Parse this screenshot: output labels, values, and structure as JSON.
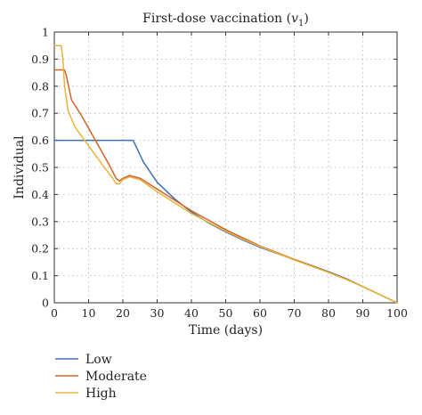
{
  "chart_data": {
    "type": "line",
    "title": "First-dose vaccination (",
    "title_symbol": "v",
    "title_subscript": "1",
    "title_close": ")",
    "xlabel": "Time (days)",
    "ylabel": "Individual",
    "xlim": [
      0,
      100
    ],
    "ylim": [
      0,
      1
    ],
    "xticks": [
      0,
      10,
      20,
      30,
      40,
      50,
      60,
      70,
      80,
      90,
      100
    ],
    "yticks": [
      0,
      0.1,
      0.2,
      0.3,
      0.4,
      0.5,
      0.6,
      0.7,
      0.8,
      0.9,
      1
    ],
    "ytick_labels": [
      "0",
      "0.1",
      "0.2",
      "0.3",
      "0.4",
      "0.5",
      "0.6",
      "0.7",
      "0.8",
      "0.9",
      "1"
    ],
    "grid": true,
    "legend_position": "below-left",
    "series": [
      {
        "name": "Low",
        "color": "#3a72b8",
        "x": [
          0,
          5,
          10,
          15,
          20,
          23,
          26,
          30,
          35,
          40,
          45,
          50,
          55,
          60,
          65,
          70,
          75,
          80,
          85,
          90,
          95,
          100
        ],
        "y": [
          0.6,
          0.6,
          0.6,
          0.6,
          0.6,
          0.6,
          0.52,
          0.445,
          0.385,
          0.335,
          0.295,
          0.262,
          0.232,
          0.205,
          0.182,
          0.16,
          0.138,
          0.115,
          0.09,
          0.06,
          0.03,
          0.0
        ]
      },
      {
        "name": "Moderate",
        "color": "#d4622a",
        "x": [
          0,
          3,
          3.5,
          5,
          8,
          12,
          16,
          18,
          19,
          20,
          22,
          25,
          30,
          35,
          40,
          45,
          50,
          55,
          60,
          65,
          70,
          75,
          80,
          85,
          90,
          95,
          100
        ],
        "y": [
          0.86,
          0.86,
          0.84,
          0.75,
          0.69,
          0.6,
          0.51,
          0.46,
          0.45,
          0.46,
          0.47,
          0.46,
          0.42,
          0.38,
          0.34,
          0.305,
          0.27,
          0.24,
          0.21,
          0.185,
          0.16,
          0.137,
          0.113,
          0.088,
          0.06,
          0.03,
          0.0
        ]
      },
      {
        "name": "High",
        "color": "#e8b43a",
        "x": [
          0,
          2,
          2.5,
          3,
          4,
          6,
          10,
          14,
          17,
          18,
          19,
          20,
          22,
          25,
          30,
          35,
          40,
          45,
          50,
          55,
          60,
          65,
          70,
          75,
          80,
          85,
          90,
          95,
          100
        ],
        "y": [
          0.95,
          0.95,
          0.9,
          0.8,
          0.71,
          0.65,
          0.58,
          0.51,
          0.46,
          0.44,
          0.44,
          0.455,
          0.465,
          0.455,
          0.41,
          0.37,
          0.33,
          0.297,
          0.265,
          0.235,
          0.208,
          0.183,
          0.158,
          0.135,
          0.112,
          0.087,
          0.06,
          0.03,
          0.0
        ]
      }
    ]
  }
}
